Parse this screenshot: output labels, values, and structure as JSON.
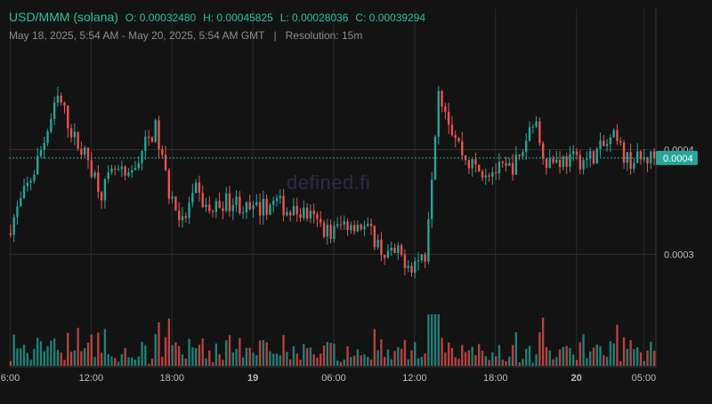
{
  "header": {
    "pair": "USD/MMM (solana)",
    "open": "O: 0.00032480",
    "high": "H: 0.00045825",
    "low": "L: 0.00028036",
    "close": "C: 0.00039294",
    "date_range": "May 18, 2025, 5:54 AM - May 20, 2025, 5:54 AM GMT",
    "separator": "|",
    "resolution": "Resolution: 15m"
  },
  "watermark": "defined.fi",
  "colors": {
    "up": "#26a69a",
    "down": "#ef5350",
    "background": "#131313",
    "grid": "#2a2a2a",
    "price_tag": "#26a69a"
  },
  "chart_data": {
    "type": "candlestick",
    "y_scale": "linear",
    "ylim": [
      0.000263,
      0.000492
    ],
    "x_range": [
      "2025-05-18T05:54",
      "2025-05-20T05:54"
    ],
    "y_ticks": [
      "0.0004",
      "0.0003"
    ],
    "y_tick_values": [
      0.0004,
      0.0003
    ],
    "x_ticks": [
      {
        "label": "6:00",
        "bold": false
      },
      {
        "label": "12:00",
        "bold": false
      },
      {
        "label": "18:00",
        "bold": false
      },
      {
        "label": "19",
        "bold": true
      },
      {
        "label": "06:00",
        "bold": false
      },
      {
        "label": "12:00",
        "bold": false
      },
      {
        "label": "18:00",
        "bold": false
      },
      {
        "label": "20",
        "bold": true
      },
      {
        "label": "05:00",
        "bold": false
      }
    ],
    "x_tick_hours": [
      0.1,
      6.1,
      12.1,
      18.1,
      24.1,
      30.1,
      36.1,
      42.1,
      47.1
    ],
    "last_price": {
      "label": "0.0004",
      "value": 0.000392
    },
    "grid": true,
    "price_trend": [
      [
        0,
        0.00032
      ],
      [
        1,
        0.00035
      ],
      [
        2,
        0.00038
      ],
      [
        3.8,
        0.00045
      ],
      [
        5,
        0.00041
      ],
      [
        6,
        0.00039
      ],
      [
        7,
        0.00036
      ],
      [
        8,
        0.00038
      ],
      [
        9,
        0.00037
      ],
      [
        10,
        0.0004
      ],
      [
        11,
        0.00042
      ],
      [
        12,
        0.00036
      ],
      [
        13,
        0.00033
      ],
      [
        14,
        0.00036
      ],
      [
        15,
        0.00034
      ],
      [
        16,
        0.00035
      ],
      [
        17,
        0.00035
      ],
      [
        18,
        0.00034
      ],
      [
        20,
        0.00035
      ],
      [
        21,
        0.00034
      ],
      [
        22,
        0.00034
      ],
      [
        23,
        0.00033
      ],
      [
        24,
        0.00032
      ],
      [
        25,
        0.00033
      ],
      [
        26,
        0.00033
      ],
      [
        27,
        0.00032
      ],
      [
        28,
        0.0003
      ],
      [
        29,
        0.0003
      ],
      [
        30,
        0.00029
      ],
      [
        31,
        0.0003
      ],
      [
        32,
        0.00046
      ],
      [
        33,
        0.00042
      ],
      [
        34,
        0.00039
      ],
      [
        35,
        0.00038
      ],
      [
        36,
        0.00038
      ],
      [
        37,
        0.00038
      ],
      [
        38,
        0.00039
      ],
      [
        39,
        0.00043
      ],
      [
        40,
        0.00039
      ],
      [
        41,
        0.00039
      ],
      [
        43,
        0.00039
      ],
      [
        44,
        0.0004
      ],
      [
        45,
        0.00041
      ],
      [
        46,
        0.00039
      ],
      [
        47,
        0.00039
      ],
      [
        48,
        0.000393
      ]
    ]
  }
}
